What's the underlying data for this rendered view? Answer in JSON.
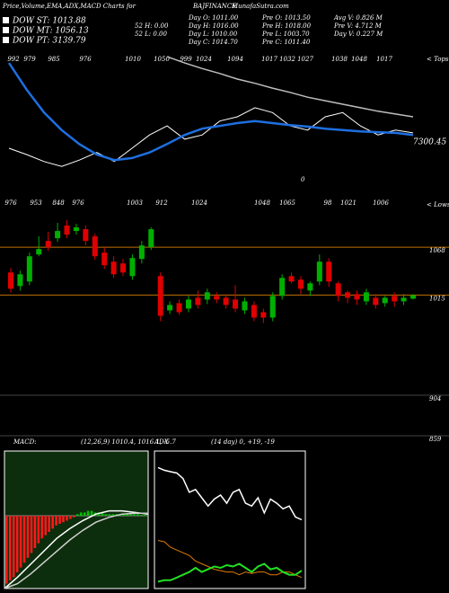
{
  "header": {
    "title": "Price,Volume,EMA,ADX,MACD Charts for",
    "symbol": "BAJFINANCE",
    "site": "MunafaSutra.com"
  },
  "legend": [
    "DOW ST: 1013.88",
    "DOW MT: 1056.13",
    "DOW PT: 3139.79"
  ],
  "stats": {
    "col1": [
      "52 H: 0.00",
      "52 L: 0.00"
    ],
    "col2": [
      "Day O: 1011.00",
      "Day H: 1016.00",
      "Day L: 1010.00",
      "Day C: 1014.70"
    ],
    "col3": [
      "Pre O: 1013.50",
      "Pre H: 1018.00",
      "Pre L: 1003.70",
      "Pre C: 1011.40"
    ],
    "col4": [
      "Avg V: 0.826 M",
      "Pre V: 4.712 M",
      "Day V: 0.227 M"
    ]
  },
  "chart_data": [
    {
      "type": "line",
      "top_labels": [
        "992",
        "979",
        "985",
        "976",
        "1010",
        "1050",
        "999",
        "1024",
        "1094",
        "1017",
        "1032",
        "1027",
        "1038",
        "1048",
        "1017"
      ],
      "bottom_labels": [
        "976",
        "953",
        "848",
        "976",
        "1003",
        "912",
        "1024",
        "1048",
        "1065",
        "98",
        "1021",
        "1006"
      ],
      "tops_label": "< Tops",
      "lows_label": "< Lows",
      "side_value": "7300.45",
      "zero_label": "0",
      "ylim": [
        940,
        1120
      ],
      "series": [
        {
          "color": "#bdbdbd",
          "values": [
            null,
            null,
            null,
            null,
            null,
            null,
            null,
            null,
            null,
            1116,
            1107,
            1099,
            1092,
            1084,
            1078,
            1071,
            1065,
            1058,
            1053,
            1048,
            1043,
            1038,
            1034,
            1030
          ]
        },
        {
          "color": "#ffffff",
          "values": [
            985,
            976,
            966,
            959,
            968,
            979,
            966,
            985,
            1004,
            1017,
            998,
            1004,
            1024,
            1030,
            1043,
            1036,
            1017,
            1011,
            1030,
            1036,
            1017,
            1004,
            1011,
            1007
          ]
        },
        {
          "color": "#1e6fe0",
          "values": [
            1107,
            1069,
            1036,
            1011,
            991,
            976,
            968,
            971,
            979,
            991,
            1004,
            1013,
            1017,
            1021,
            1024,
            1021,
            1018,
            1016,
            1013,
            1011,
            1009,
            1008,
            1007,
            1004
          ]
        }
      ]
    },
    {
      "type": "candlestick",
      "ylim": [
        859,
        1110
      ],
      "yticks": [
        1068,
        1015,
        904,
        859
      ],
      "up_color": "#00b000",
      "down_color": "#e00000",
      "open": [
        1040,
        1025,
        1030,
        1060,
        1075,
        1078,
        1092,
        1086,
        1088,
        1080,
        1062,
        1052,
        1050,
        1036,
        1055,
        1068,
        1036,
        998,
        1006,
        1000,
        1012,
        1010,
        1014,
        1012,
        1010,
        998,
        1004,
        996,
        990,
        1014,
        1036,
        1032,
        1020,
        1030,
        1052,
        1028,
        1018,
        1016,
        1008,
        1012,
        1006,
        1014,
        1008,
        1011
      ],
      "high": [
        1045,
        1042,
        1062,
        1080,
        1085,
        1095,
        1098,
        1094,
        1092,
        1083,
        1068,
        1058,
        1055,
        1060,
        1075,
        1090,
        1040,
        1008,
        1010,
        1014,
        1020,
        1022,
        1018,
        1016,
        1026,
        1012,
        1008,
        1000,
        1018,
        1038,
        1040,
        1036,
        1030,
        1060,
        1056,
        1030,
        1020,
        1020,
        1022,
        1016,
        1014,
        1018,
        1016,
        1016
      ],
      "low": [
        1018,
        1020,
        1026,
        1058,
        1064,
        1074,
        1078,
        1082,
        1070,
        1054,
        1044,
        1034,
        1036,
        1032,
        1050,
        1065,
        986,
        994,
        993,
        996,
        1000,
        1005,
        1006,
        1000,
        996,
        994,
        986,
        984,
        986,
        1010,
        1028,
        1016,
        1014,
        1026,
        1024,
        1008,
        1006,
        1004,
        1004,
        1000,
        1002,
        1002,
        1004,
        1010
      ],
      "close": [
        1022,
        1038,
        1058,
        1066,
        1068,
        1086,
        1082,
        1090,
        1075,
        1058,
        1048,
        1038,
        1040,
        1056,
        1070,
        1088,
        992,
        1004,
        996,
        1010,
        1004,
        1018,
        1010,
        1004,
        1000,
        1008,
        990,
        990,
        1014,
        1034,
        1030,
        1022,
        1028,
        1052,
        1030,
        1014,
        1012,
        1010,
        1018,
        1004,
        1012,
        1008,
        1012,
        1014.7
      ]
    },
    {
      "type": "macd",
      "title": "MACD:",
      "params": "(12,26,9) 1010.4, 1016.1, -5.7",
      "ylim": [
        -45,
        40
      ],
      "histogram": [
        -42,
        -40,
        -38,
        -35,
        -32,
        -29,
        -26,
        -23,
        -20,
        -17,
        -14,
        -12,
        -10,
        -8,
        -6,
        -5,
        -4,
        -3,
        -2,
        -1,
        1,
        2,
        2,
        3,
        3,
        2,
        2,
        2,
        1,
        1,
        1,
        1,
        1,
        1,
        1,
        1,
        1,
        1,
        0.5,
        0.5
      ],
      "series": [
        {
          "color": "#ffffff",
          "values": [
            -45,
            -38,
            -30,
            -22,
            -14,
            -8,
            -3,
            1,
            3,
            3,
            2,
            1
          ]
        },
        {
          "color": "#cfcfcf",
          "values": [
            -45,
            -42,
            -36,
            -29,
            -22,
            -15,
            -9,
            -4,
            -1,
            1,
            1.5,
            1.5
          ]
        }
      ]
    },
    {
      "type": "adx",
      "title": "ADX",
      "params": "(14 day) 0, +19, -19",
      "ylim": [
        0,
        100
      ],
      "series": [
        {
          "color": "#ffffff",
          "values": [
            88,
            86,
            85,
            84,
            80,
            70,
            72,
            66,
            60,
            65,
            68,
            62,
            70,
            72,
            62,
            60,
            66,
            55,
            65,
            62,
            58,
            60,
            52,
            50
          ]
        },
        {
          "color": "#e07b00",
          "values": [
            35,
            34,
            30,
            28,
            26,
            24,
            20,
            18,
            16,
            14,
            13,
            12,
            12,
            10,
            12,
            11,
            12,
            12,
            10,
            10,
            12,
            12,
            10,
            8
          ]
        },
        {
          "color": "#22e022",
          "values": [
            5,
            6,
            6,
            8,
            10,
            12,
            15,
            12,
            14,
            16,
            15,
            17,
            16,
            18,
            15,
            12,
            16,
            18,
            14,
            15,
            12,
            10,
            10,
            13
          ]
        }
      ]
    }
  ]
}
